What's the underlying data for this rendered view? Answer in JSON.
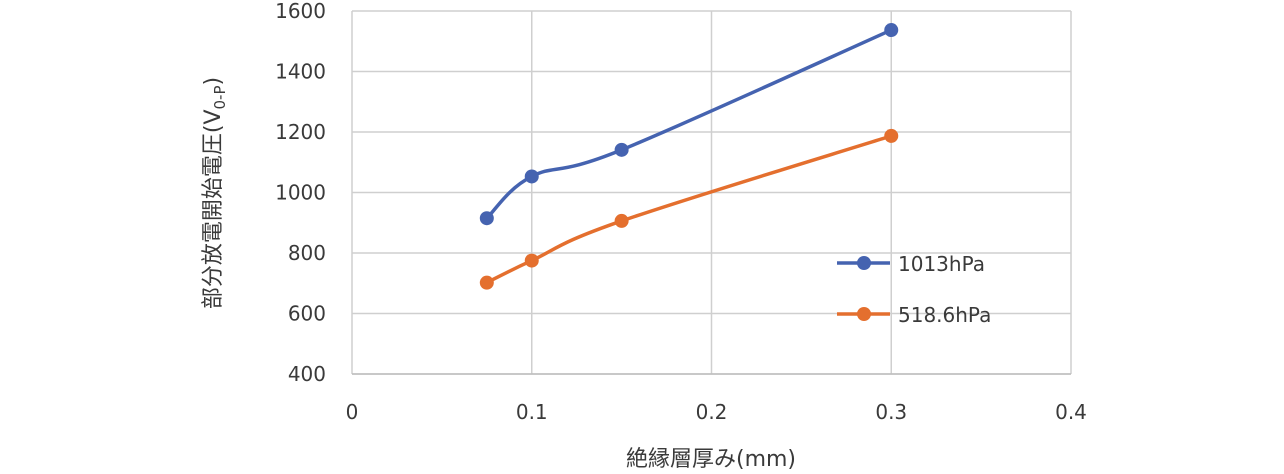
{
  "chart_data": {
    "type": "line",
    "xlabel": "絶縁層厚み(mm)",
    "ylabel_main": "部分放電開始電圧(V",
    "ylabel_sub": "0-P",
    "ylabel_close": ")",
    "xlim": [
      0,
      0.4
    ],
    "ylim": [
      400,
      1600
    ],
    "x_ticks": [
      0,
      0.1,
      0.2,
      0.3,
      0.4
    ],
    "x_tick_labels": [
      "0",
      "0.1",
      "0.2",
      "0.3",
      "0.4"
    ],
    "y_ticks": [
      400,
      600,
      800,
      1000,
      1200,
      1400,
      1600
    ],
    "y_tick_labels": [
      "400",
      "600",
      "800",
      "1000",
      "1200",
      "1400",
      "1600"
    ],
    "grid": true,
    "legend_position": "right",
    "series": [
      {
        "name": "1013hPa",
        "color": "#4563b0",
        "points": [
          {
            "x": 0.075,
            "y": 915
          },
          {
            "x": 0.1,
            "y": 1053
          },
          {
            "x": 0.15,
            "y": 1141
          },
          {
            "x": 0.3,
            "y": 1537
          }
        ]
      },
      {
        "name": "518.6hPa",
        "color": "#e46f2e",
        "points": [
          {
            "x": 0.075,
            "y": 702
          },
          {
            "x": 0.1,
            "y": 775
          },
          {
            "x": 0.15,
            "y": 906
          },
          {
            "x": 0.3,
            "y": 1187
          }
        ]
      }
    ]
  }
}
